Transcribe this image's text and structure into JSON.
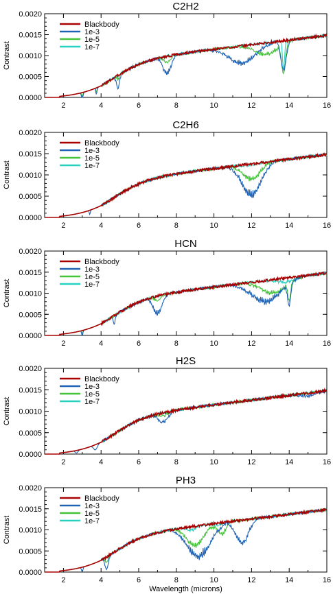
{
  "figure": {
    "xlabel": "Wavelength (microns)"
  },
  "chart_data": [
    {
      "type": "line",
      "title": "C2H2",
      "ylabel": "Contrast",
      "xlim": [
        1,
        16
      ],
      "ylim": [
        0,
        0.002
      ],
      "xticks": [
        2,
        4,
        6,
        8,
        10,
        12,
        14,
        16
      ],
      "yticks": [
        "0.0000",
        "0.0005",
        "0.0010",
        "0.0015",
        "0.0020"
      ],
      "legend": "top-left",
      "series": [
        {
          "name": "Blackbody",
          "color": "#a80000",
          "abs": []
        },
        {
          "name": "1e-3",
          "color": "#1f62b4",
          "abs": [
            [
              3.0,
              0.00015,
              0.15
            ],
            [
              3.75,
              0.00015,
              0.12
            ],
            [
              4.9,
              0.0003,
              0.3
            ],
            [
              7.5,
              0.00045,
              0.75
            ],
            [
              11.5,
              0.00045,
              2.5
            ],
            [
              13.7,
              0.0007,
              0.5
            ]
          ]
        },
        {
          "name": "1e-5",
          "color": "#44c23a",
          "abs": [
            [
              3.0,
              0.0001,
              0.12
            ],
            [
              3.75,
              0.0001,
              0.1
            ],
            [
              4.9,
              0.0001,
              0.2
            ],
            [
              7.5,
              0.00015,
              0.6
            ],
            [
              12.8,
              0.0003,
              2.2
            ],
            [
              13.7,
              0.0007,
              0.35
            ]
          ]
        },
        {
          "name": "1e-7",
          "color": "#25d2c1",
          "abs": [
            [
              13.7,
              0.0007,
              0.2
            ]
          ]
        }
      ]
    },
    {
      "type": "line",
      "title": "C2H6",
      "ylabel": "Contrast",
      "xlim": [
        1,
        16
      ],
      "ylim": [
        0,
        0.002
      ],
      "xticks": [
        2,
        4,
        6,
        8,
        10,
        12,
        14,
        16
      ],
      "yticks": [
        "0.0000",
        "0.0005",
        "0.0010",
        "0.0015",
        "0.0020"
      ],
      "legend": "top-left",
      "series": [
        {
          "name": "Blackbody",
          "color": "#a80000",
          "abs": []
        },
        {
          "name": "1e-3",
          "color": "#1f62b4",
          "abs": [
            [
              3.4,
              0.0001,
              0.1
            ],
            [
              12.0,
              0.0008,
              1.8
            ]
          ]
        },
        {
          "name": "1e-5",
          "color": "#44c23a",
          "abs": [
            [
              12.0,
              0.0004,
              1.6
            ]
          ]
        },
        {
          "name": "1e-7",
          "color": "#25d2c1",
          "abs": [
            [
              12.0,
              3e-05,
              1.4
            ]
          ]
        }
      ]
    },
    {
      "type": "line",
      "title": "HCN",
      "ylabel": "Contrast",
      "xlim": [
        1,
        16
      ],
      "ylim": [
        0,
        0.002
      ],
      "xticks": [
        2,
        4,
        6,
        8,
        10,
        12,
        14,
        16
      ],
      "yticks": [
        "0.0000",
        "0.0005",
        "0.0010",
        "0.0015",
        "0.0020"
      ],
      "legend": "top-left",
      "series": [
        {
          "name": "Blackbody",
          "color": "#a80000",
          "abs": []
        },
        {
          "name": "1e-3",
          "color": "#1f62b4",
          "abs": [
            [
              3.0,
              0.00012,
              0.12
            ],
            [
              4.7,
              0.00018,
              0.2
            ],
            [
              7.0,
              0.00045,
              0.8
            ],
            [
              12.8,
              0.00055,
              2.8
            ],
            [
              14.0,
              0.0005,
              0.3
            ]
          ]
        },
        {
          "name": "1e-5",
          "color": "#44c23a",
          "abs": [
            [
              3.0,
              8e-05,
              0.1
            ],
            [
              7.0,
              0.0001,
              0.5
            ],
            [
              13.2,
              0.00035,
              2.4
            ],
            [
              14.0,
              0.0004,
              0.25
            ]
          ]
        },
        {
          "name": "1e-7",
          "color": "#25d2c1",
          "abs": [
            [
              13.8,
              0.0001,
              1.8
            ]
          ]
        }
      ]
    },
    {
      "type": "line",
      "title": "H2S",
      "ylabel": "Contrast",
      "xlim": [
        1,
        16
      ],
      "ylim": [
        0,
        0.002
      ],
      "xticks": [
        2,
        4,
        6,
        8,
        10,
        12,
        14,
        16
      ],
      "yticks": [
        "0.0000",
        "0.0005",
        "0.0010",
        "0.0015",
        "0.0020"
      ],
      "legend": "top-left",
      "series": [
        {
          "name": "Blackbody",
          "color": "#a80000",
          "abs": []
        },
        {
          "name": "1e-3",
          "color": "#1f62b4",
          "abs": [
            [
              2.7,
              6e-05,
              0.25
            ],
            [
              3.7,
              0.00012,
              0.35
            ],
            [
              7.3,
              0.00025,
              0.9
            ],
            [
              15.0,
              8e-05,
              1.5
            ]
          ]
        },
        {
          "name": "1e-5",
          "color": "#44c23a",
          "abs": [
            [
              7.3,
              8e-05,
              0.8
            ]
          ]
        },
        {
          "name": "1e-7",
          "color": "#25d2c1",
          "abs": []
        }
      ]
    },
    {
      "type": "line",
      "title": "PH3",
      "ylabel": "Contrast",
      "xlim": [
        1,
        16
      ],
      "ylim": [
        0,
        0.002
      ],
      "xticks": [
        2,
        4,
        6,
        8,
        10,
        12,
        14,
        16
      ],
      "yticks": [
        "0.0000",
        "0.0005",
        "0.0010",
        "0.0015",
        "0.0020"
      ],
      "legend": "top-left",
      "series": [
        {
          "name": "Blackbody",
          "color": "#a80000",
          "abs": []
        },
        {
          "name": "1e-3",
          "color": "#1f62b4",
          "abs": [
            [
              3.0,
              0.0001,
              0.15
            ],
            [
              4.3,
              0.0003,
              0.3
            ],
            [
              9.2,
              0.0008,
              2.2
            ],
            [
              11.5,
              0.0006,
              1.2
            ]
          ]
        },
        {
          "name": "1e-5",
          "color": "#44c23a",
          "abs": [
            [
              4.3,
              0.00012,
              0.25
            ],
            [
              9.0,
              0.0005,
              1.6
            ],
            [
              10.4,
              0.0003,
              0.8
            ]
          ]
        },
        {
          "name": "1e-7",
          "color": "#25d2c1",
          "abs": [
            [
              8.8,
              0.0001,
              0.8
            ],
            [
              10.2,
              6e-05,
              0.6
            ]
          ]
        }
      ]
    }
  ]
}
